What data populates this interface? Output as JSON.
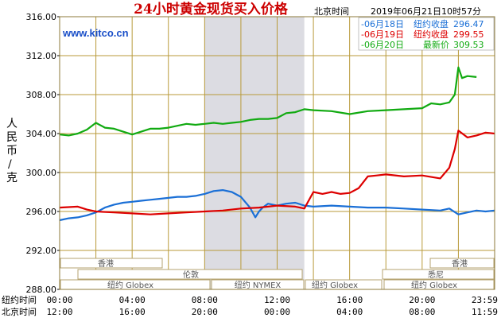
{
  "header": {
    "title": "24小时黄金现货买入价格",
    "beijing_time_label": "北京时间",
    "timestamp": "2019年06月21日10时57分",
    "site": "www.kitco.cn"
  },
  "y_axis_title_chars": [
    "人",
    "民",
    "币",
    "/",
    "克"
  ],
  "x_rows": {
    "ny_label": "纽约时间",
    "bj_label": "北京时间",
    "ny_ticks": [
      "00:00",
      "04:00",
      "08:00",
      "12:00",
      "16:00",
      "20:00",
      "23:59"
    ],
    "bj_ticks": [
      "12:00",
      "16:00",
      "20:00",
      "00:00",
      "04:00",
      "08:00",
      "11:59"
    ]
  },
  "markets": {
    "hongkong_left": "香港",
    "london": "伦敦",
    "ny_globex_left": "纽约 Globex",
    "ny_nymex": "纽约 NYMEX",
    "sydney_mid": "悉尼",
    "ny_globex_mid": "纽约 Globex",
    "hongkong_right": "香港",
    "sydney_right": "悉尼",
    "ny_globex_right": "纽约 Globex"
  },
  "colors": {
    "grid": "#b89a3a",
    "shade": "#dcdce2",
    "jun18": "#1a6fd6",
    "jun19": "#dd0000",
    "jun20": "#11aa11",
    "title": "#cc0000"
  },
  "chart_data": {
    "type": "line",
    "title": "24小时黄金现货买入价格",
    "ylabel": "人民币/克",
    "ylim": [
      288,
      316
    ],
    "yticks": [
      "316.00",
      "312.00",
      "308.00",
      "304.00",
      "300.00",
      "296.00",
      "292.00",
      "288.00"
    ],
    "xlim": [
      0,
      24
    ],
    "x_unit": "New York hour",
    "grid": true,
    "legend_position": "top-right",
    "shaded_range": [
      8,
      13.5
    ],
    "series": [
      {
        "name": "06月18日",
        "legend_label": "-06月18日",
        "legend_desc": "纽约收盘",
        "legend_value": "296.47",
        "color": "#1a6fd6",
        "x": [
          0,
          0.5,
          1,
          1.5,
          2,
          2.5,
          3,
          3.5,
          4,
          4.5,
          5,
          5.5,
          6,
          6.5,
          7,
          7.5,
          8,
          8.5,
          9,
          9.5,
          10,
          10.5,
          10.8,
          11,
          11.2,
          11.5,
          12,
          12.5,
          13,
          13.5,
          14,
          15,
          16,
          17,
          18,
          19,
          20,
          21,
          21.5,
          22,
          22.5,
          23,
          23.5,
          24
        ],
        "y": [
          295.1,
          295.3,
          295.4,
          295.6,
          295.9,
          296.4,
          296.7,
          296.9,
          297.0,
          297.1,
          297.2,
          297.3,
          297.4,
          297.5,
          297.5,
          297.6,
          297.8,
          298.1,
          298.2,
          298.0,
          297.5,
          296.4,
          295.4,
          296.0,
          296.4,
          296.8,
          296.6,
          296.8,
          296.9,
          296.6,
          296.5,
          296.6,
          296.5,
          296.4,
          296.4,
          296.3,
          296.2,
          296.1,
          296.3,
          295.7,
          295.9,
          296.1,
          296.0,
          296.1
        ]
      },
      {
        "name": "06月19日",
        "legend_label": "-06月19日",
        "legend_desc": "纽约收盘",
        "legend_value": "299.55",
        "color": "#dd0000",
        "x": [
          0,
          1,
          1.5,
          2,
          3,
          4,
          5,
          6,
          7,
          8,
          9,
          10,
          11,
          12,
          13,
          13.5,
          14,
          14.5,
          15,
          15.5,
          16,
          16.5,
          17,
          17.5,
          18,
          19,
          20,
          21,
          21.5,
          21.8,
          22,
          22.5,
          23,
          23.5,
          24
        ],
        "y": [
          296.4,
          296.5,
          296.2,
          296.0,
          295.9,
          295.8,
          295.7,
          295.8,
          295.9,
          296.0,
          296.1,
          296.3,
          296.4,
          296.6,
          296.5,
          296.3,
          298.0,
          297.8,
          298.0,
          297.8,
          297.9,
          298.4,
          299.6,
          299.7,
          299.8,
          299.6,
          299.7,
          299.4,
          300.5,
          302.4,
          304.3,
          303.6,
          303.8,
          304.1,
          304.0
        ]
      },
      {
        "name": "06月20日",
        "legend_label": "-06月20日",
        "legend_desc": "最新价",
        "legend_value": "309.53",
        "color": "#11aa11",
        "x": [
          0,
          0.5,
          1,
          1.5,
          2,
          2.5,
          3,
          3.5,
          4,
          4.5,
          5,
          5.5,
          6,
          6.5,
          7,
          7.5,
          8,
          8.5,
          9,
          9.5,
          10,
          10.5,
          11,
          11.5,
          12,
          12.5,
          13,
          13.5,
          14,
          15,
          16,
          17,
          18,
          19,
          20,
          20.5,
          21,
          21.5,
          21.8,
          22,
          22.2,
          22.5,
          23
        ],
        "y": [
          303.9,
          303.8,
          304.0,
          304.4,
          305.1,
          304.6,
          304.5,
          304.2,
          303.9,
          304.2,
          304.5,
          304.5,
          304.6,
          304.8,
          305.0,
          304.9,
          305.0,
          305.1,
          305.0,
          305.1,
          305.2,
          305.4,
          305.5,
          305.5,
          305.6,
          306.1,
          306.2,
          306.5,
          306.4,
          306.3,
          306.0,
          306.3,
          306.4,
          306.5,
          306.6,
          307.1,
          307.0,
          307.2,
          308.0,
          310.8,
          309.7,
          309.9,
          309.8
        ]
      }
    ]
  }
}
